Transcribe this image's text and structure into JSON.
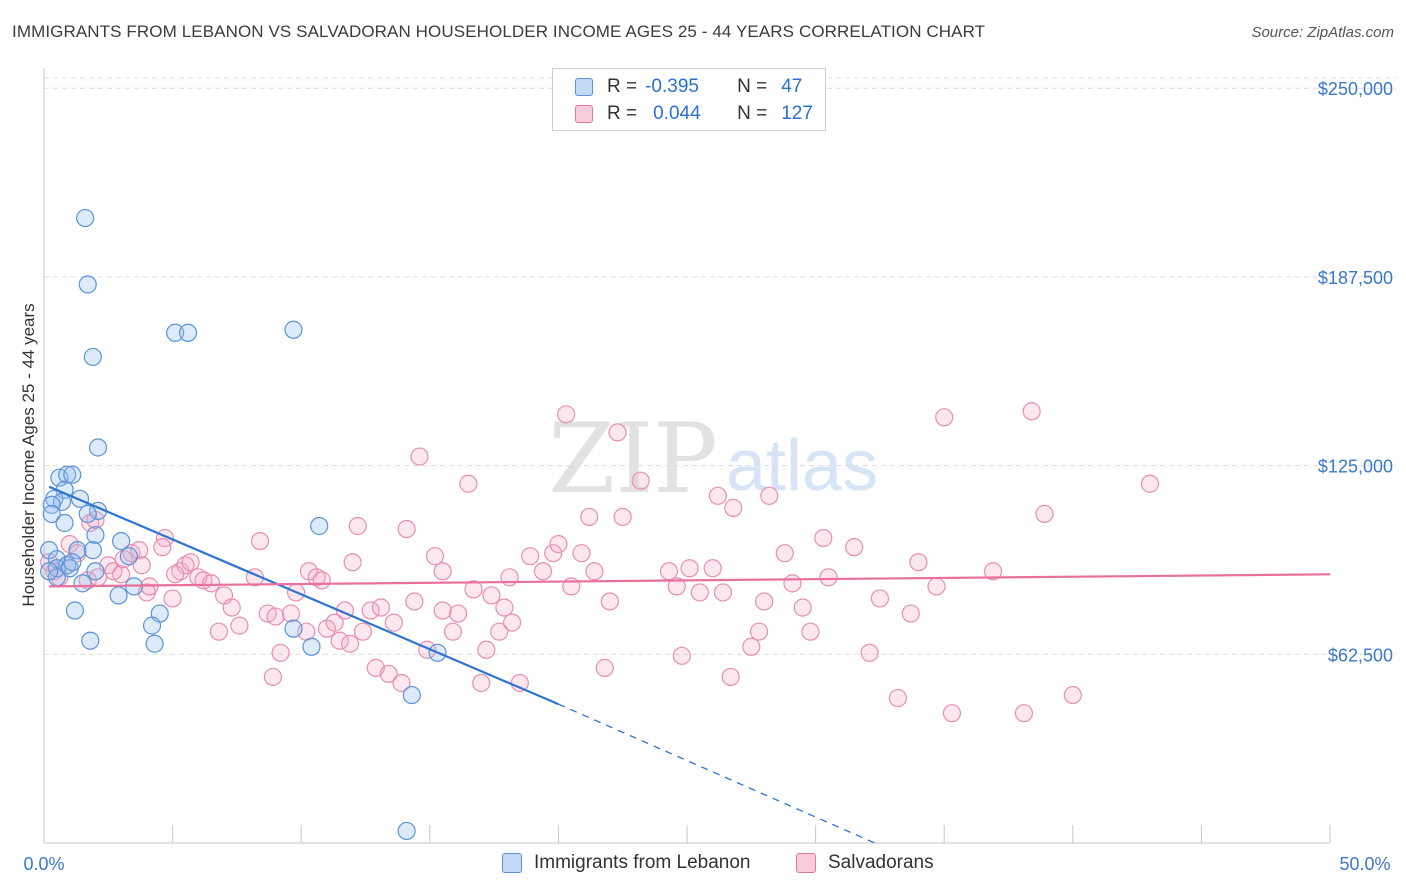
{
  "header": {
    "title": "IMMIGRANTS FROM LEBANON VS SALVADORAN HOUSEHOLDER INCOME AGES 25 - 44 YEARS CORRELATION CHART",
    "source": "Source: ZipAtlas.com"
  },
  "watermark": {
    "zip": "ZIP",
    "atlas": "atlas"
  },
  "legend": {
    "rows": [
      {
        "r_label": "R =",
        "r_value": "-0.395",
        "n_label": "N =",
        "n_value": "47",
        "color": "#a9c8f0",
        "border": "#5b8fd6"
      },
      {
        "r_label": "R =",
        "r_value": "0.044",
        "n_label": "N =",
        "n_value": "127",
        "color": "#f6b8cc",
        "border": "#e07a9c"
      }
    ]
  },
  "bottom_legend": [
    {
      "label": "Immigrants from Lebanon",
      "color": "#a9c8f0",
      "border": "#5b8fd6"
    },
    {
      "label": "Salvadorans",
      "color": "#f6b8cc",
      "border": "#e07a9c"
    }
  ],
  "chart_data": {
    "type": "scatter",
    "title": "IMMIGRANTS FROM LEBANON VS SALVADORAN HOUSEHOLDER INCOME AGES 25 - 44 YEARS CORRELATION CHART",
    "xlabel": "",
    "ylabel": "Householder Income Ages 25 - 44 years",
    "xlim": [
      0,
      50
    ],
    "ylim": [
      0,
      262000
    ],
    "x_tick_labels": [
      "0.0%",
      "50.0%"
    ],
    "y_ticks": [
      62500,
      125000,
      187500,
      250000
    ],
    "y_tick_labels": [
      "$62,500",
      "$125,000",
      "$187,500",
      "$250,000"
    ],
    "grid": "horizontal dashed",
    "series": [
      {
        "name": "Immigrants from Lebanon",
        "color": "#6fa3e6",
        "trend": {
          "x_solid": [
            0.2,
            20.0
          ],
          "y_solid": [
            118000,
            46000
          ],
          "x_dash": [
            20.0,
            32.3
          ],
          "y_dash": [
            46000,
            0
          ]
        },
        "points": [
          [
            1.6,
            207000
          ],
          [
            1.7,
            185000
          ],
          [
            1.9,
            161000
          ],
          [
            5.1,
            169000
          ],
          [
            5.6,
            169000
          ],
          [
            9.7,
            170000
          ],
          [
            2.1,
            131000
          ],
          [
            0.6,
            121000
          ],
          [
            0.9,
            122000
          ],
          [
            1.1,
            122000
          ],
          [
            0.8,
            117000
          ],
          [
            0.4,
            114000
          ],
          [
            0.7,
            113000
          ],
          [
            1.4,
            114000
          ],
          [
            0.3,
            112000
          ],
          [
            2.1,
            110000
          ],
          [
            1.7,
            109000
          ],
          [
            0.3,
            109000
          ],
          [
            0.8,
            106000
          ],
          [
            10.7,
            105000
          ],
          [
            2.0,
            102000
          ],
          [
            3.0,
            100000
          ],
          [
            0.2,
            97000
          ],
          [
            1.3,
            97000
          ],
          [
            1.9,
            97000
          ],
          [
            0.5,
            94000
          ],
          [
            3.3,
            95000
          ],
          [
            0.9,
            92000
          ],
          [
            0.5,
            91000
          ],
          [
            1.0,
            91000
          ],
          [
            2.0,
            90000
          ],
          [
            1.5,
            86000
          ],
          [
            3.5,
            85000
          ],
          [
            2.9,
            82000
          ],
          [
            1.2,
            77000
          ],
          [
            4.5,
            76000
          ],
          [
            4.2,
            72000
          ],
          [
            9.7,
            71000
          ],
          [
            1.8,
            67000
          ],
          [
            4.3,
            66000
          ],
          [
            10.4,
            65000
          ],
          [
            15.3,
            63000
          ],
          [
            14.3,
            49000
          ],
          [
            14.1,
            4000
          ],
          [
            0.5,
            88000
          ],
          [
            0.2,
            90000
          ],
          [
            1.1,
            93000
          ]
        ]
      },
      {
        "name": "Salvadorans",
        "color": "#f19ab6",
        "trend": {
          "x": [
            0.2,
            50.0
          ],
          "y": [
            85000,
            89000
          ]
        },
        "points": [
          [
            0.2,
            93000
          ],
          [
            0.4,
            90000
          ],
          [
            0.6,
            88000
          ],
          [
            0.9,
            92000
          ],
          [
            1.0,
            99000
          ],
          [
            1.3,
            96000
          ],
          [
            1.7,
            87000
          ],
          [
            1.8,
            106000
          ],
          [
            2.1,
            88000
          ],
          [
            2.5,
            92000
          ],
          [
            2.7,
            90000
          ],
          [
            3.0,
            89000
          ],
          [
            3.1,
            94000
          ],
          [
            3.4,
            96000
          ],
          [
            3.7,
            97000
          ],
          [
            3.8,
            92000
          ],
          [
            4.0,
            83000
          ],
          [
            4.1,
            85000
          ],
          [
            4.7,
            101000
          ],
          [
            5.0,
            81000
          ],
          [
            5.3,
            90000
          ],
          [
            5.5,
            92000
          ],
          [
            5.7,
            93000
          ],
          [
            6.0,
            88000
          ],
          [
            6.2,
            87000
          ],
          [
            6.5,
            86000
          ],
          [
            7.0,
            82000
          ],
          [
            7.3,
            78000
          ],
          [
            7.6,
            72000
          ],
          [
            8.2,
            88000
          ],
          [
            8.4,
            100000
          ],
          [
            8.7,
            76000
          ],
          [
            8.9,
            55000
          ],
          [
            9.0,
            75000
          ],
          [
            9.6,
            76000
          ],
          [
            9.8,
            83000
          ],
          [
            10.2,
            70000
          ],
          [
            10.3,
            90000
          ],
          [
            10.6,
            88000
          ],
          [
            10.8,
            87000
          ],
          [
            11.0,
            71000
          ],
          [
            11.3,
            73000
          ],
          [
            11.5,
            67000
          ],
          [
            11.7,
            77000
          ],
          [
            12.0,
            93000
          ],
          [
            12.2,
            105000
          ],
          [
            12.4,
            70000
          ],
          [
            12.7,
            77000
          ],
          [
            12.9,
            58000
          ],
          [
            13.1,
            78000
          ],
          [
            13.4,
            56000
          ],
          [
            13.6,
            73000
          ],
          [
            13.9,
            53000
          ],
          [
            14.1,
            104000
          ],
          [
            14.4,
            80000
          ],
          [
            14.6,
            128000
          ],
          [
            14.9,
            64000
          ],
          [
            15.2,
            95000
          ],
          [
            15.5,
            90000
          ],
          [
            15.9,
            70000
          ],
          [
            16.1,
            76000
          ],
          [
            16.5,
            119000
          ],
          [
            16.7,
            84000
          ],
          [
            17.0,
            53000
          ],
          [
            17.2,
            64000
          ],
          [
            17.4,
            82000
          ],
          [
            17.7,
            70000
          ],
          [
            17.9,
            78000
          ],
          [
            18.2,
            73000
          ],
          [
            18.5,
            53000
          ],
          [
            18.9,
            95000
          ],
          [
            19.4,
            90000
          ],
          [
            19.8,
            96000
          ],
          [
            20.0,
            99000
          ],
          [
            20.3,
            142000
          ],
          [
            20.5,
            85000
          ],
          [
            20.9,
            96000
          ],
          [
            21.2,
            108000
          ],
          [
            21.4,
            90000
          ],
          [
            22.0,
            80000
          ],
          [
            22.5,
            108000
          ],
          [
            23.2,
            120000
          ],
          [
            24.3,
            90000
          ],
          [
            24.6,
            85000
          ],
          [
            25.1,
            91000
          ],
          [
            25.5,
            83000
          ],
          [
            26.0,
            91000
          ],
          [
            26.2,
            115000
          ],
          [
            26.4,
            83000
          ],
          [
            26.8,
            111000
          ],
          [
            27.8,
            70000
          ],
          [
            28.0,
            80000
          ],
          [
            28.2,
            115000
          ],
          [
            28.8,
            96000
          ],
          [
            29.1,
            86000
          ],
          [
            29.5,
            78000
          ],
          [
            29.8,
            70000
          ],
          [
            30.3,
            101000
          ],
          [
            30.5,
            88000
          ],
          [
            31.5,
            98000
          ],
          [
            32.5,
            81000
          ],
          [
            33.2,
            48000
          ],
          [
            33.7,
            76000
          ],
          [
            34.7,
            85000
          ],
          [
            35.0,
            141000
          ],
          [
            35.3,
            43000
          ],
          [
            36.9,
            90000
          ],
          [
            38.1,
            43000
          ],
          [
            38.4,
            143000
          ],
          [
            38.9,
            109000
          ],
          [
            40.0,
            49000
          ],
          [
            43.0,
            119000
          ],
          [
            22.3,
            136000
          ],
          [
            5.1,
            89000
          ],
          [
            2.0,
            107000
          ],
          [
            4.6,
            98000
          ],
          [
            15.5,
            77000
          ],
          [
            18.1,
            88000
          ],
          [
            27.5,
            65000
          ],
          [
            24.8,
            62000
          ],
          [
            32.1,
            63000
          ],
          [
            34.0,
            93000
          ],
          [
            21.8,
            58000
          ],
          [
            26.7,
            55000
          ],
          [
            9.2,
            63000
          ],
          [
            11.9,
            66000
          ],
          [
            6.8,
            70000
          ]
        ]
      }
    ]
  }
}
